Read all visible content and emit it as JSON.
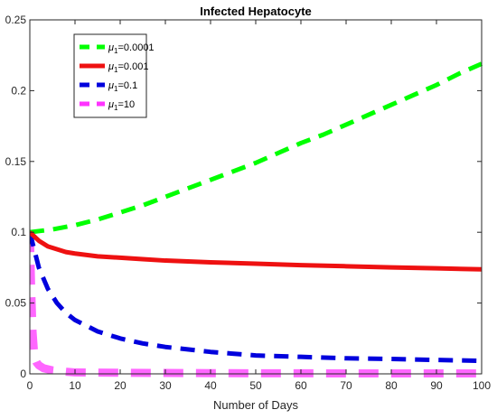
{
  "chart_data": {
    "type": "line",
    "title": "Infected Hepatocyte",
    "xlabel": "Number of Days",
    "ylabel": "",
    "xlim": [
      0,
      100
    ],
    "ylim": [
      0,
      0.25
    ],
    "x_ticks": [
      0,
      10,
      20,
      30,
      40,
      50,
      60,
      70,
      80,
      90,
      100
    ],
    "y_ticks": [
      0,
      0.05,
      0.1,
      0.15,
      0.2,
      0.25
    ],
    "x_tick_labels": [
      "0",
      "10",
      "20",
      "30",
      "40",
      "50",
      "60",
      "70",
      "80",
      "90",
      "100"
    ],
    "y_tick_labels": [
      "0",
      "0.05",
      "0.1",
      "0.15",
      "0.2",
      "0.25"
    ],
    "grid": false,
    "legend_position": "top-left",
    "series": [
      {
        "name": "μ1=0.0001",
        "legend_symbol": "μ",
        "legend_subscript": "1",
        "legend_value": "=0.0001",
        "color": "#00ff00",
        "style": "dashed",
        "x": [
          0,
          5,
          10,
          15,
          20,
          25,
          30,
          35,
          40,
          45,
          50,
          55,
          60,
          65,
          70,
          75,
          80,
          85,
          90,
          95,
          100
        ],
        "y": [
          0.1,
          0.102,
          0.105,
          0.109,
          0.114,
          0.119,
          0.125,
          0.131,
          0.137,
          0.143,
          0.149,
          0.156,
          0.163,
          0.169,
          0.176,
          0.183,
          0.19,
          0.197,
          0.204,
          0.212,
          0.219
        ]
      },
      {
        "name": "μ1=0.001",
        "legend_symbol": "μ",
        "legend_subscript": "1",
        "legend_value": "=0.001",
        "color": "#ee1111",
        "style": "solid",
        "x": [
          0,
          2,
          4,
          6,
          8,
          10,
          15,
          20,
          25,
          30,
          40,
          50,
          60,
          70,
          80,
          90,
          100
        ],
        "y": [
          0.1,
          0.094,
          0.09,
          0.088,
          0.086,
          0.085,
          0.083,
          0.082,
          0.081,
          0.08,
          0.0788,
          0.0778,
          0.0768,
          0.076,
          0.0752,
          0.0745,
          0.0738
        ]
      },
      {
        "name": "μ1=0.1",
        "legend_symbol": "μ",
        "legend_subscript": "1",
        "legend_value": "=0.1",
        "color": "#0000dd",
        "style": "dashed",
        "x": [
          0,
          2,
          4,
          6,
          8,
          10,
          15,
          20,
          25,
          30,
          40,
          50,
          60,
          70,
          80,
          90,
          100
        ],
        "y": [
          0.1,
          0.075,
          0.06,
          0.05,
          0.043,
          0.038,
          0.03,
          0.025,
          0.0215,
          0.019,
          0.0155,
          0.013,
          0.012,
          0.011,
          0.0105,
          0.0098,
          0.0092
        ]
      },
      {
        "name": "μ1=10",
        "legend_symbol": "μ",
        "legend_subscript": "1",
        "legend_value": "=10",
        "color": "#ff33ff",
        "style": "dashed",
        "x": [
          0,
          0.3,
          0.6,
          1,
          1.5,
          2,
          3,
          5,
          8,
          10,
          20,
          30,
          40,
          50,
          60,
          70,
          80,
          90,
          100
        ],
        "y": [
          0.1,
          0.06,
          0.03,
          0.012,
          0.008,
          0.006,
          0.004,
          0.0025,
          0.0015,
          0.001,
          0.0008,
          0.0006,
          0.0005,
          0.0004,
          0.0004,
          0.0003,
          0.0003,
          0.0003,
          0.0003
        ]
      }
    ]
  }
}
